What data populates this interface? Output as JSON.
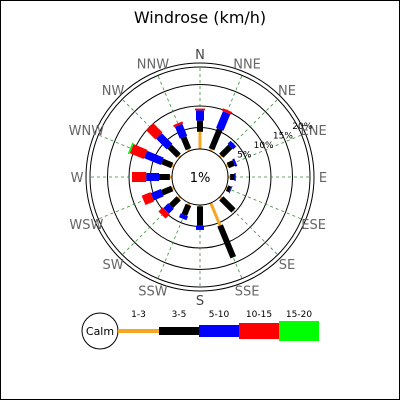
{
  "chart_data": {
    "type": "windrose",
    "title": "Windrose (km/h)",
    "directions": [
      "N",
      "NNE",
      "NE",
      "ENE",
      "E",
      "ESE",
      "SE",
      "SSE",
      "S",
      "SSW",
      "SW",
      "WSW",
      "W",
      "WNW",
      "NW",
      "NNW"
    ],
    "ring_labels": [
      "5%",
      "10%",
      "15%",
      "20%"
    ],
    "ring_values": [
      5,
      10,
      15,
      20
    ],
    "calm_label": "1%",
    "calm_value": 1,
    "speed_bins": [
      {
        "name": "1-3",
        "color": "#f5a623"
      },
      {
        "name": "3-5",
        "color": "#000000"
      },
      {
        "name": "5-10",
        "color": "#0000ff"
      },
      {
        "name": "10-15",
        "color": "#ff0000"
      },
      {
        "name": "15-20",
        "color": "#00ff00"
      }
    ],
    "calm_legend": "Calm",
    "series": [
      {
        "direction": "N",
        "values": [
          4,
          2.6,
          2.4,
          0.4,
          0
        ]
      },
      {
        "direction": "NNE",
        "values": [
          0.5,
          5,
          4.2,
          0.6,
          0
        ]
      },
      {
        "direction": "NE",
        "values": [
          0.5,
          3,
          1,
          0,
          0
        ]
      },
      {
        "direction": "ENE",
        "values": [
          0.5,
          1.5,
          0.5,
          0,
          0
        ]
      },
      {
        "direction": "E",
        "values": [
          0.5,
          1,
          0.3,
          0,
          0
        ]
      },
      {
        "direction": "ESE",
        "values": [
          0.3,
          0.8,
          0.2,
          0,
          0
        ]
      },
      {
        "direction": "SE",
        "values": [
          0.5,
          4,
          0,
          0,
          0
        ]
      },
      {
        "direction": "SSE",
        "values": [
          5.7,
          8,
          0,
          0,
          0
        ]
      },
      {
        "direction": "S",
        "values": [
          0.3,
          4.5,
          1,
          0,
          0
        ]
      },
      {
        "direction": "SSW",
        "values": [
          0.5,
          2.5,
          1,
          0,
          0
        ]
      },
      {
        "direction": "SW",
        "values": [
          0.5,
          2.5,
          1.6,
          1.4,
          0
        ]
      },
      {
        "direction": "WSW",
        "values": [
          0.5,
          2.5,
          2.5,
          2.2,
          0
        ]
      },
      {
        "direction": "W",
        "values": [
          0.5,
          2.5,
          3,
          3.3,
          0
        ]
      },
      {
        "direction": "WNW",
        "values": [
          0.5,
          2.5,
          4.2,
          3.5,
          0.4
        ]
      },
      {
        "direction": "NW",
        "values": [
          0.5,
          3,
          3.5,
          3,
          0
        ]
      },
      {
        "direction": "NNW",
        "values": [
          0.5,
          3,
          3,
          0.5,
          0
        ]
      }
    ]
  }
}
